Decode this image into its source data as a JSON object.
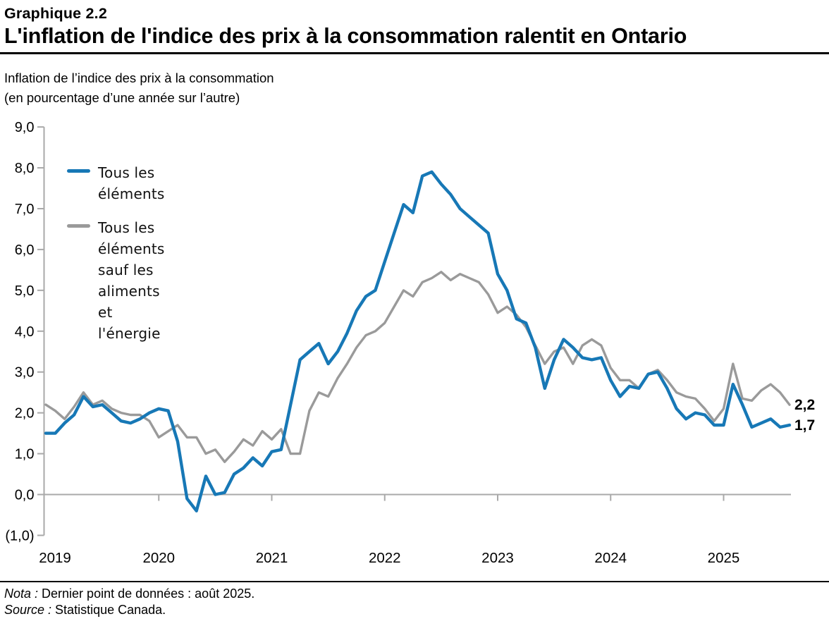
{
  "header": {
    "chart_number": "Graphique 2.2",
    "title": "L'inflation de l'indice des prix à la consommation ralentit en Ontario"
  },
  "subtitle": {
    "line1": "Inflation de l’indice des prix à la consommation",
    "line2": "(en pourcentage d’une année sur l’autre)"
  },
  "footer": {
    "nota_label": "Nota :",
    "nota_text": " Dernier point de données : août 2025.",
    "source_label": "Source :",
    "source_text": " Statistique Canada."
  },
  "colors": {
    "all_items": "#1778b6",
    "ex_food_energy": "#9a9a9a",
    "axis": "#a9a9a9",
    "text": "#000000"
  },
  "chart_data": {
    "type": "line",
    "title": "L'inflation de l'indice des prix à la consommation ralentit en Ontario",
    "ylabel": "Inflation de l’indice des prix à la consommation (en pourcentage d’une année sur l’autre)",
    "frequency": "monthly",
    "start_month": "2019-01",
    "end_month": "2025-08",
    "ylim": [
      -1,
      9
    ],
    "grid": false,
    "legend_position": "top-left",
    "y_ticks": [
      {
        "value": 9,
        "label": "9,0"
      },
      {
        "value": 8,
        "label": "8,0"
      },
      {
        "value": 7,
        "label": "7,0"
      },
      {
        "value": 6,
        "label": "6,0"
      },
      {
        "value": 5,
        "label": "5,0"
      },
      {
        "value": 4,
        "label": "4,0"
      },
      {
        "value": 3,
        "label": "3,0"
      },
      {
        "value": 2,
        "label": "2,0"
      },
      {
        "value": 1,
        "label": "1,0"
      },
      {
        "value": 0,
        "label": "0,0"
      },
      {
        "value": -1,
        "label": "(1,0)"
      }
    ],
    "x_ticks": [
      {
        "label": "2019",
        "month_index": 0,
        "tick": false
      },
      {
        "label": "2020",
        "month_index": 12,
        "tick": true
      },
      {
        "label": "2021",
        "month_index": 24,
        "tick": true
      },
      {
        "label": "2022",
        "month_index": 36,
        "tick": true
      },
      {
        "label": "2023",
        "month_index": 48,
        "tick": true
      },
      {
        "label": "2024",
        "month_index": 60,
        "tick": true
      },
      {
        "label": "2025",
        "month_index": 72,
        "tick": true
      }
    ],
    "series": [
      {
        "id": "all_items",
        "name": "Tous les éléments",
        "color": "#1778b6",
        "last_value_label": "1,7",
        "values": [
          1.5,
          1.5,
          1.75,
          1.95,
          2.4,
          2.15,
          2.2,
          2.0,
          1.8,
          1.75,
          1.85,
          2.0,
          2.1,
          2.05,
          1.3,
          -0.1,
          -0.4,
          0.45,
          0.0,
          0.05,
          0.5,
          0.65,
          0.9,
          0.7,
          1.05,
          1.1,
          2.2,
          3.3,
          3.5,
          3.7,
          3.2,
          3.5,
          3.95,
          4.5,
          4.85,
          5.0,
          5.7,
          6.4,
          7.1,
          6.9,
          7.8,
          7.9,
          7.6,
          7.35,
          7.0,
          6.8,
          6.6,
          6.4,
          5.4,
          5.0,
          4.3,
          4.2,
          3.6,
          2.6,
          3.3,
          3.8,
          3.6,
          3.35,
          3.3,
          3.35,
          2.8,
          2.4,
          2.65,
          2.6,
          2.95,
          3.0,
          2.6,
          2.1,
          1.85,
          2.0,
          1.95,
          1.7,
          1.7,
          2.7,
          2.2,
          1.65,
          1.75,
          1.85,
          1.65,
          1.7
        ]
      },
      {
        "id": "ex_food_energy",
        "name": "Tous les éléments sauf les aliments et l'énergie",
        "color": "#9a9a9a",
        "last_value_label": "2,2",
        "values": [
          2.2,
          2.05,
          1.85,
          2.15,
          2.5,
          2.2,
          2.3,
          2.1,
          2.0,
          1.95,
          1.95,
          1.8,
          1.4,
          1.55,
          1.7,
          1.4,
          1.4,
          1.0,
          1.1,
          0.8,
          1.05,
          1.35,
          1.2,
          1.55,
          1.35,
          1.6,
          1.0,
          1.0,
          2.05,
          2.5,
          2.4,
          2.85,
          3.2,
          3.6,
          3.9,
          4.0,
          4.2,
          4.6,
          5.0,
          4.85,
          5.2,
          5.3,
          5.45,
          5.25,
          5.4,
          5.3,
          5.2,
          4.9,
          4.45,
          4.6,
          4.4,
          4.1,
          3.65,
          3.2,
          3.5,
          3.6,
          3.2,
          3.65,
          3.8,
          3.65,
          3.1,
          2.8,
          2.8,
          2.6,
          2.95,
          3.05,
          2.8,
          2.5,
          2.4,
          2.35,
          2.1,
          1.8,
          2.1,
          3.2,
          2.35,
          2.3,
          2.55,
          2.7,
          2.5,
          2.2
        ]
      }
    ]
  }
}
